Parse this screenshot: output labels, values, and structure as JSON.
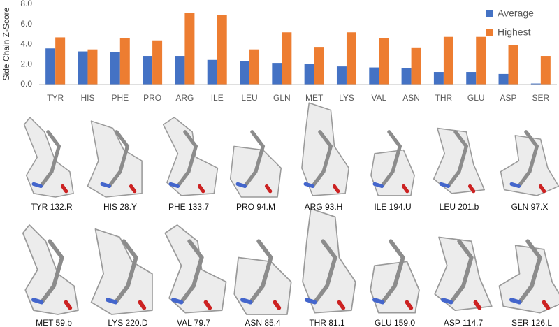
{
  "chart_data": {
    "type": "bar",
    "y_label": "Side Chain Z-Score",
    "categories": [
      "TYR",
      "HIS",
      "PHE",
      "PRO",
      "ARG",
      "ILE",
      "LEU",
      "GLN",
      "MET",
      "LYS",
      "VAL",
      "ASN",
      "THR",
      "GLU",
      "ASP",
      "SER"
    ],
    "series": [
      {
        "name": "Average",
        "color": "#4472c4",
        "values": [
          3.6,
          3.3,
          3.2,
          2.85,
          2.85,
          2.45,
          2.3,
          2.15,
          2.05,
          1.8,
          1.7,
          1.6,
          1.25,
          1.25,
          1.05,
          0.1
        ]
      },
      {
        "name": "Highest",
        "color": "#ed7d31",
        "values": [
          4.7,
          3.5,
          4.65,
          4.4,
          7.15,
          6.9,
          3.5,
          5.2,
          3.75,
          5.2,
          4.65,
          3.7,
          4.75,
          4.75,
          3.95,
          2.85
        ]
      }
    ],
    "ylim": [
      0,
      8
    ],
    "yticks": [
      {
        "value": 0,
        "label": "0.0"
      },
      {
        "value": 2,
        "label": "2.0"
      },
      {
        "value": 4,
        "label": "4.0"
      },
      {
        "value": 6,
        "label": "6.0"
      },
      {
        "value": 8,
        "label": "8.0"
      }
    ],
    "legend": "top-right"
  },
  "panels": [
    {
      "label": "TYR 132.R"
    },
    {
      "label": "HIS 28.Y"
    },
    {
      "label": "PHE 133.7"
    },
    {
      "label": "PRO 94.M"
    },
    {
      "label": "ARG 93.H"
    },
    {
      "label": "ILE 194.U"
    },
    {
      "label": "LEU 201.b"
    },
    {
      "label": "GLN 97.X"
    },
    {
      "label": "MET 59.b"
    },
    {
      "label": "LYS 220.D"
    },
    {
      "label": "VAL 79.7"
    },
    {
      "label": "ASN 85.4"
    },
    {
      "label": "THR 81.1"
    },
    {
      "label": "GLU 159.0"
    },
    {
      "label": "ASP 114.7"
    },
    {
      "label": "SER 126.L"
    }
  ]
}
